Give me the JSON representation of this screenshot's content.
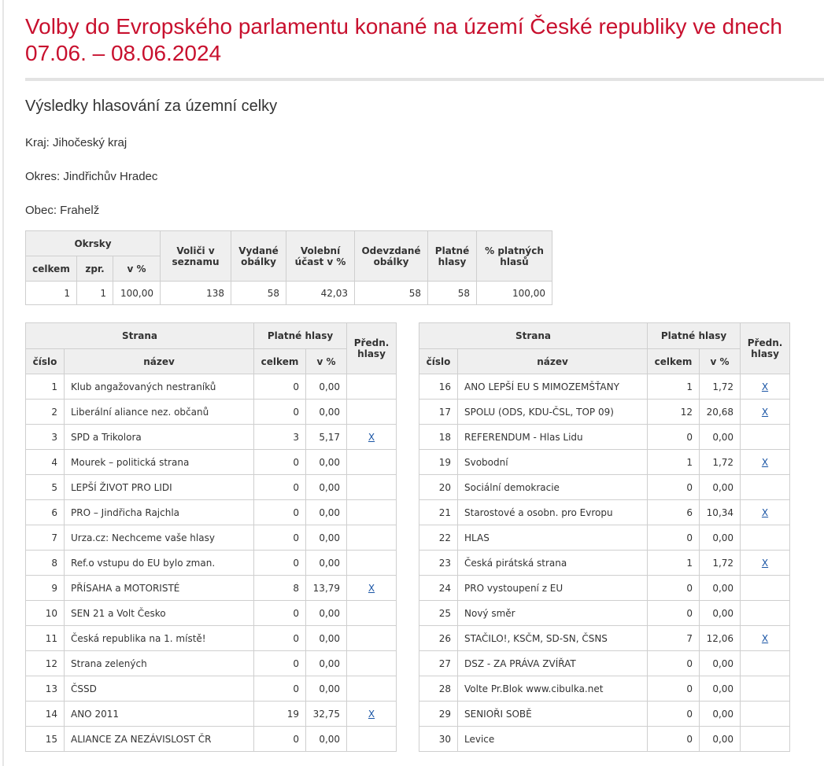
{
  "title": "Volby do Evropského parlamentu konané na území České republiky ve dnech 07.06. – 08.06.2024",
  "subtitle": "Výsledky hlasování za územní celky",
  "kraj": "Kraj: Jihočeský kraj",
  "okres": "Okres: Jindřichův Hradec",
  "obec": "Obec: Frahelž",
  "summary": {
    "headers": {
      "okrsky": "Okrsky",
      "celkem": "celkem",
      "zpr": "zpr.",
      "v_pct": "v %",
      "volici": "Voliči v seznamu",
      "vydane": "Vydané obálky",
      "ucast": "Volební účast v %",
      "odevzdane": "Odevzdané obálky",
      "platne": "Platné hlasy",
      "pct_platnych": "% platných hlasů"
    },
    "row": {
      "celkem": "1",
      "zpr": "1",
      "v_pct": "100,00",
      "volici": "138",
      "vydane": "58",
      "ucast": "42,03",
      "odevzdane": "58",
      "platne": "58",
      "pct_platnych": "100,00"
    }
  },
  "party_headers": {
    "strana": "Strana",
    "platne_hlasy": "Platné hlasy",
    "predn": "Předn. hlasy",
    "cislo": "číslo",
    "nazev": "název",
    "celkem": "celkem",
    "v_pct": "v %"
  },
  "parties_left": [
    {
      "cislo": "1",
      "nazev": "Klub angažovaných nestraníků",
      "celkem": "0",
      "v_pct": "0,00",
      "predn": ""
    },
    {
      "cislo": "2",
      "nazev": "Liberální aliance nez. občanů",
      "celkem": "0",
      "v_pct": "0,00",
      "predn": ""
    },
    {
      "cislo": "3",
      "nazev": "SPD a Trikolora",
      "celkem": "3",
      "v_pct": "5,17",
      "predn": "X"
    },
    {
      "cislo": "4",
      "nazev": "Mourek – politická strana",
      "celkem": "0",
      "v_pct": "0,00",
      "predn": ""
    },
    {
      "cislo": "5",
      "nazev": "LEPŠÍ ŽIVOT PRO LIDI",
      "celkem": "0",
      "v_pct": "0,00",
      "predn": ""
    },
    {
      "cislo": "6",
      "nazev": "PRO – Jindřicha Rajchla",
      "celkem": "0",
      "v_pct": "0,00",
      "predn": ""
    },
    {
      "cislo": "7",
      "nazev": "Urza.cz: Nechceme vaše hlasy",
      "celkem": "0",
      "v_pct": "0,00",
      "predn": ""
    },
    {
      "cislo": "8",
      "nazev": "Ref.o vstupu do EU bylo zman.",
      "celkem": "0",
      "v_pct": "0,00",
      "predn": ""
    },
    {
      "cislo": "9",
      "nazev": "PŘÍSAHA a MOTORISTÉ",
      "celkem": "8",
      "v_pct": "13,79",
      "predn": "X"
    },
    {
      "cislo": "10",
      "nazev": "SEN 21 a Volt Česko",
      "celkem": "0",
      "v_pct": "0,00",
      "predn": ""
    },
    {
      "cislo": "11",
      "nazev": "Česká republika na 1. místě!",
      "celkem": "0",
      "v_pct": "0,00",
      "predn": ""
    },
    {
      "cislo": "12",
      "nazev": "Strana zelených",
      "celkem": "0",
      "v_pct": "0,00",
      "predn": ""
    },
    {
      "cislo": "13",
      "nazev": "ČSSD",
      "celkem": "0",
      "v_pct": "0,00",
      "predn": ""
    },
    {
      "cislo": "14",
      "nazev": "ANO 2011",
      "celkem": "19",
      "v_pct": "32,75",
      "predn": "X"
    },
    {
      "cislo": "15",
      "nazev": "ALIANCE ZA NEZÁVISLOST ČR",
      "celkem": "0",
      "v_pct": "0,00",
      "predn": ""
    }
  ],
  "parties_right": [
    {
      "cislo": "16",
      "nazev": "ANO LEPŠÍ EU S MIMOZEMŠŤANY",
      "celkem": "1",
      "v_pct": "1,72",
      "predn": "X"
    },
    {
      "cislo": "17",
      "nazev": "SPOLU (ODS, KDU-ČSL, TOP 09)",
      "celkem": "12",
      "v_pct": "20,68",
      "predn": "X"
    },
    {
      "cislo": "18",
      "nazev": "REFERENDUM - Hlas Lidu",
      "celkem": "0",
      "v_pct": "0,00",
      "predn": ""
    },
    {
      "cislo": "19",
      "nazev": "Svobodní",
      "celkem": "1",
      "v_pct": "1,72",
      "predn": "X"
    },
    {
      "cislo": "20",
      "nazev": "Sociální demokracie",
      "celkem": "0",
      "v_pct": "0,00",
      "predn": ""
    },
    {
      "cislo": "21",
      "nazev": "Starostové a osobn. pro Evropu",
      "celkem": "6",
      "v_pct": "10,34",
      "predn": "X"
    },
    {
      "cislo": "22",
      "nazev": "HLAS",
      "celkem": "0",
      "v_pct": "0,00",
      "predn": ""
    },
    {
      "cislo": "23",
      "nazev": "Česká pirátská strana",
      "celkem": "1",
      "v_pct": "1,72",
      "predn": "X"
    },
    {
      "cislo": "24",
      "nazev": "PRO vystoupení z EU",
      "celkem": "0",
      "v_pct": "0,00",
      "predn": ""
    },
    {
      "cislo": "25",
      "nazev": "Nový směr",
      "celkem": "0",
      "v_pct": "0,00",
      "predn": ""
    },
    {
      "cislo": "26",
      "nazev": "STAČILO!, KSČM, SD-SN, ČSNS",
      "celkem": "7",
      "v_pct": "12,06",
      "predn": "X"
    },
    {
      "cislo": "27",
      "nazev": "DSZ - ZA PRÁVA ZVÍŘAT",
      "celkem": "0",
      "v_pct": "0,00",
      "predn": ""
    },
    {
      "cislo": "28",
      "nazev": "Volte Pr.Blok www.cibulka.net",
      "celkem": "0",
      "v_pct": "0,00",
      "predn": ""
    },
    {
      "cislo": "29",
      "nazev": "SENIOŘI SOBĚ",
      "celkem": "0",
      "v_pct": "0,00",
      "predn": ""
    },
    {
      "cislo": "30",
      "nazev": "Levice",
      "celkem": "0",
      "v_pct": "0,00",
      "predn": ""
    }
  ],
  "colors": {
    "title": "#c8102e",
    "link": "#1a55a5",
    "header_bg": "#efefef"
  }
}
